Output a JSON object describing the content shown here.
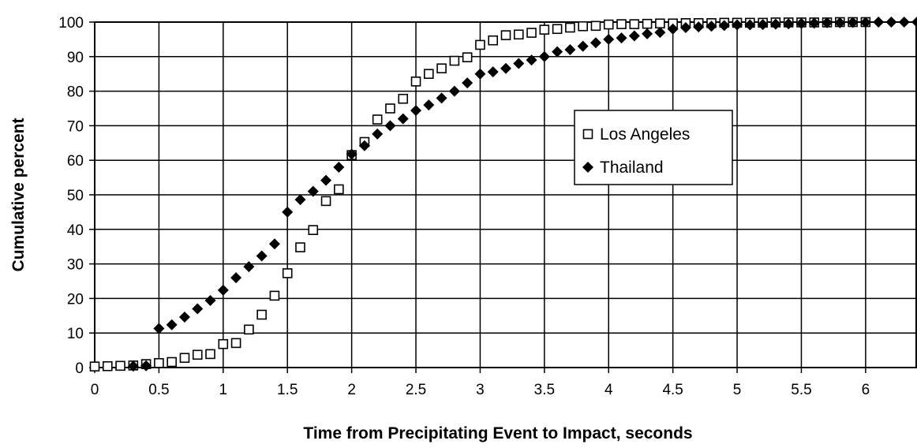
{
  "chart_data": {
    "type": "scatter",
    "title": "",
    "xlabel": "Time from Precipitating Event to Impact, seconds",
    "ylabel": "Cumulative percent",
    "xlim": [
      0,
      6.4
    ],
    "ylim": [
      0,
      100
    ],
    "x_ticks": [
      "0",
      "0.5",
      "1",
      "1.5",
      "2",
      "2.5",
      "3",
      "3.5",
      "4",
      "4.5",
      "5",
      "5.5",
      "6"
    ],
    "y_ticks": [
      "0",
      "10",
      "20",
      "30",
      "40",
      "50",
      "60",
      "70",
      "80",
      "90",
      "100"
    ],
    "grid": true,
    "legend_position": "center-right",
    "series": [
      {
        "name": "Los Angeles",
        "marker": "open-square",
        "color": "#000000",
        "x": [
          0.0,
          0.1,
          0.2,
          0.3,
          0.4,
          0.5,
          0.6,
          0.7,
          0.8,
          0.9,
          1.0,
          1.1,
          1.2,
          1.3,
          1.4,
          1.5,
          1.6,
          1.7,
          1.8,
          1.9,
          2.0,
          2.1,
          2.2,
          2.3,
          2.4,
          2.5,
          2.6,
          2.7,
          2.8,
          2.9,
          3.0,
          3.1,
          3.2,
          3.3,
          3.4,
          3.5,
          3.6,
          3.7,
          3.8,
          3.9,
          4.0,
          4.1,
          4.2,
          4.3,
          4.4,
          4.5,
          4.6,
          4.7,
          4.8,
          4.9,
          5.0,
          5.1,
          5.2,
          5.3,
          5.4,
          5.5,
          5.6,
          5.7,
          5.8,
          5.9,
          6.0
        ],
        "y": [
          0.3,
          0.4,
          0.5,
          0.6,
          1.0,
          1.3,
          1.6,
          2.8,
          3.7,
          3.9,
          6.8,
          7.1,
          11.0,
          15.3,
          20.8,
          27.3,
          34.8,
          39.8,
          48.2,
          51.6,
          61.5,
          65.3,
          71.8,
          75.0,
          77.8,
          82.8,
          85.0,
          86.6,
          88.8,
          89.8,
          93.4,
          94.7,
          96.2,
          96.4,
          96.9,
          97.8,
          98.0,
          98.4,
          98.8,
          98.9,
          99.3,
          99.4,
          99.4,
          99.5,
          99.6,
          99.6,
          99.7,
          99.7,
          99.7,
          99.8,
          99.8,
          99.8,
          99.8,
          99.9,
          99.9,
          99.9,
          99.9,
          99.9,
          100.0,
          100.0,
          100.0
        ]
      },
      {
        "name": "Thailand",
        "marker": "filled-diamond",
        "color": "#000000",
        "x": [
          0.3,
          0.4,
          0.5,
          0.6,
          0.7,
          0.8,
          0.9,
          1.0,
          1.1,
          1.2,
          1.3,
          1.4,
          1.5,
          1.6,
          1.7,
          1.8,
          1.9,
          2.0,
          2.1,
          2.2,
          2.3,
          2.4,
          2.5,
          2.6,
          2.7,
          2.8,
          2.9,
          3.0,
          3.1,
          3.2,
          3.3,
          3.4,
          3.5,
          3.6,
          3.7,
          3.8,
          3.9,
          4.0,
          4.1,
          4.2,
          4.3,
          4.4,
          4.5,
          4.6,
          4.7,
          4.8,
          4.9,
          5.0,
          5.1,
          5.2,
          5.3,
          5.4,
          5.5,
          5.6,
          5.7,
          5.8,
          5.9,
          6.0,
          6.1,
          6.2,
          6.3,
          6.4
        ],
        "y": [
          0.4,
          0.5,
          11.3,
          12.4,
          14.6,
          17.0,
          19.4,
          22.4,
          26.0,
          29.2,
          32.3,
          35.8,
          45.0,
          48.6,
          51.0,
          54.2,
          58.0,
          61.8,
          64.2,
          67.6,
          70.0,
          72.0,
          74.4,
          76.0,
          78.0,
          80.0,
          82.4,
          85.0,
          85.6,
          86.6,
          88.0,
          89.0,
          90.0,
          91.4,
          92.0,
          93.0,
          94.0,
          95.0,
          95.4,
          96.0,
          96.6,
          97.0,
          98.0,
          98.4,
          98.6,
          98.8,
          99.0,
          99.2,
          99.2,
          99.3,
          99.4,
          99.5,
          99.6,
          99.7,
          99.8,
          99.8,
          99.9,
          99.9,
          100.0,
          100.0,
          100.0,
          100.0
        ]
      }
    ]
  }
}
